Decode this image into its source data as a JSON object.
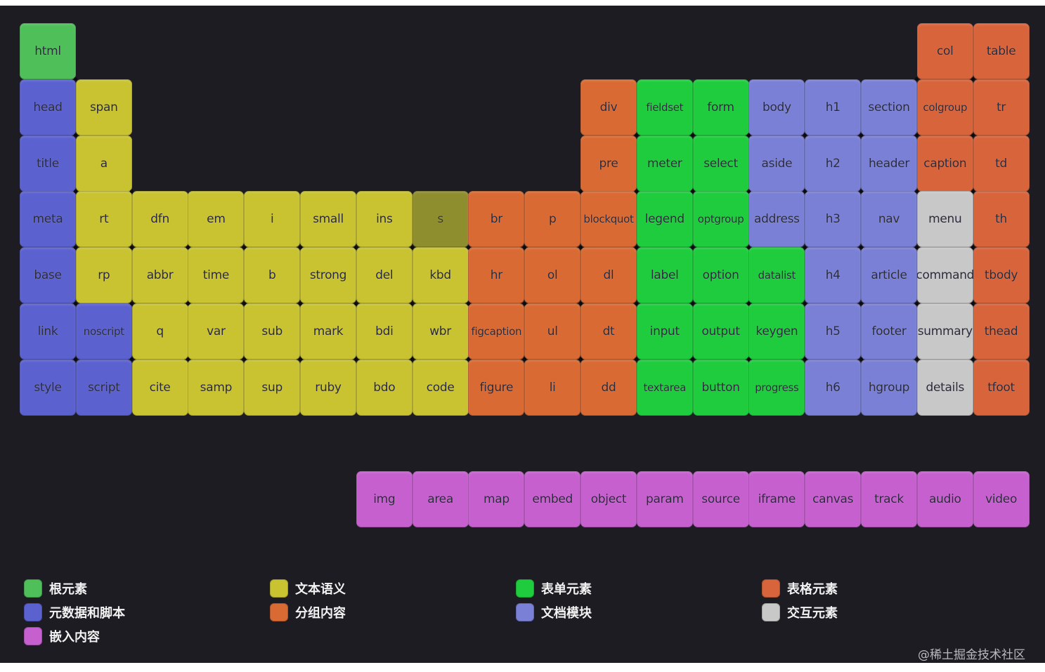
{
  "colors": {
    "root": "#4fbf5a",
    "metadata": "#5b61cf",
    "text": "#c9c332",
    "text_dim": "#8f8e2f",
    "grouping": "#d96a33",
    "forms": "#1fcc3d",
    "sections": "#7a80d6",
    "tables": "#d8643b",
    "interactive": "#c8c8c8",
    "embedded": "#c760cf"
  },
  "elements": [
    {
      "label": "html",
      "category": "root",
      "row": 0,
      "col": 0
    },
    {
      "label": "col",
      "category": "tables",
      "row": 0,
      "col": 16
    },
    {
      "label": "table",
      "category": "tables",
      "row": 0,
      "col": 17
    },
    {
      "label": "head",
      "category": "metadata",
      "row": 1,
      "col": 0
    },
    {
      "label": "span",
      "category": "text",
      "row": 1,
      "col": 1
    },
    {
      "label": "div",
      "category": "grouping",
      "row": 1,
      "col": 10
    },
    {
      "label": "fieldset",
      "category": "forms",
      "row": 1,
      "col": 11
    },
    {
      "label": "form",
      "category": "forms",
      "row": 1,
      "col": 12
    },
    {
      "label": "body",
      "category": "sections",
      "row": 1,
      "col": 13
    },
    {
      "label": "h1",
      "category": "sections",
      "row": 1,
      "col": 14
    },
    {
      "label": "section",
      "category": "sections",
      "row": 1,
      "col": 15
    },
    {
      "label": "colgroup",
      "category": "tables",
      "row": 1,
      "col": 16
    },
    {
      "label": "tr",
      "category": "tables",
      "row": 1,
      "col": 17
    },
    {
      "label": "title",
      "category": "metadata",
      "row": 2,
      "col": 0
    },
    {
      "label": "a",
      "category": "text",
      "row": 2,
      "col": 1
    },
    {
      "label": "pre",
      "category": "grouping",
      "row": 2,
      "col": 10
    },
    {
      "label": "meter",
      "category": "forms",
      "row": 2,
      "col": 11
    },
    {
      "label": "select",
      "category": "forms",
      "row": 2,
      "col": 12
    },
    {
      "label": "aside",
      "category": "sections",
      "row": 2,
      "col": 13
    },
    {
      "label": "h2",
      "category": "sections",
      "row": 2,
      "col": 14
    },
    {
      "label": "header",
      "category": "sections",
      "row": 2,
      "col": 15
    },
    {
      "label": "caption",
      "category": "tables",
      "row": 2,
      "col": 16
    },
    {
      "label": "td",
      "category": "tables",
      "row": 2,
      "col": 17
    },
    {
      "label": "meta",
      "category": "metadata",
      "row": 3,
      "col": 0
    },
    {
      "label": "rt",
      "category": "text",
      "row": 3,
      "col": 1
    },
    {
      "label": "dfn",
      "category": "text",
      "row": 3,
      "col": 2
    },
    {
      "label": "em",
      "category": "text",
      "row": 3,
      "col": 3
    },
    {
      "label": "i",
      "category": "text",
      "row": 3,
      "col": 4
    },
    {
      "label": "small",
      "category": "text",
      "row": 3,
      "col": 5
    },
    {
      "label": "ins",
      "category": "text",
      "row": 3,
      "col": 6
    },
    {
      "label": "s",
      "category": "text_dim",
      "row": 3,
      "col": 7
    },
    {
      "label": "br",
      "category": "grouping",
      "row": 3,
      "col": 8
    },
    {
      "label": "p",
      "category": "grouping",
      "row": 3,
      "col": 9
    },
    {
      "label": "blockquot",
      "category": "grouping",
      "row": 3,
      "col": 10
    },
    {
      "label": "legend",
      "category": "forms",
      "row": 3,
      "col": 11
    },
    {
      "label": "optgroup",
      "category": "forms",
      "row": 3,
      "col": 12
    },
    {
      "label": "address",
      "category": "sections",
      "row": 3,
      "col": 13
    },
    {
      "label": "h3",
      "category": "sections",
      "row": 3,
      "col": 14
    },
    {
      "label": "nav",
      "category": "sections",
      "row": 3,
      "col": 15
    },
    {
      "label": "menu",
      "category": "interactive",
      "row": 3,
      "col": 16
    },
    {
      "label": "th",
      "category": "tables",
      "row": 3,
      "col": 17
    },
    {
      "label": "base",
      "category": "metadata",
      "row": 4,
      "col": 0
    },
    {
      "label": "rp",
      "category": "text",
      "row": 4,
      "col": 1
    },
    {
      "label": "abbr",
      "category": "text",
      "row": 4,
      "col": 2
    },
    {
      "label": "time",
      "category": "text",
      "row": 4,
      "col": 3
    },
    {
      "label": "b",
      "category": "text",
      "row": 4,
      "col": 4
    },
    {
      "label": "strong",
      "category": "text",
      "row": 4,
      "col": 5
    },
    {
      "label": "del",
      "category": "text",
      "row": 4,
      "col": 6
    },
    {
      "label": "kbd",
      "category": "text",
      "row": 4,
      "col": 7
    },
    {
      "label": "hr",
      "category": "grouping",
      "row": 4,
      "col": 8
    },
    {
      "label": "ol",
      "category": "grouping",
      "row": 4,
      "col": 9
    },
    {
      "label": "dl",
      "category": "grouping",
      "row": 4,
      "col": 10
    },
    {
      "label": "label",
      "category": "forms",
      "row": 4,
      "col": 11
    },
    {
      "label": "option",
      "category": "forms",
      "row": 4,
      "col": 12
    },
    {
      "label": "datalist",
      "category": "forms",
      "row": 4,
      "col": 13
    },
    {
      "label": "h4",
      "category": "sections",
      "row": 4,
      "col": 14
    },
    {
      "label": "article",
      "category": "sections",
      "row": 4,
      "col": 15
    },
    {
      "label": "command",
      "category": "interactive",
      "row": 4,
      "col": 16
    },
    {
      "label": "tbody",
      "category": "tables",
      "row": 4,
      "col": 17
    },
    {
      "label": "link",
      "category": "metadata",
      "row": 5,
      "col": 0
    },
    {
      "label": "noscript",
      "category": "metadata",
      "row": 5,
      "col": 1
    },
    {
      "label": "q",
      "category": "text",
      "row": 5,
      "col": 2
    },
    {
      "label": "var",
      "category": "text",
      "row": 5,
      "col": 3
    },
    {
      "label": "sub",
      "category": "text",
      "row": 5,
      "col": 4
    },
    {
      "label": "mark",
      "category": "text",
      "row": 5,
      "col": 5
    },
    {
      "label": "bdi",
      "category": "text",
      "row": 5,
      "col": 6
    },
    {
      "label": "wbr",
      "category": "text",
      "row": 5,
      "col": 7
    },
    {
      "label": "figcaption",
      "category": "grouping",
      "row": 5,
      "col": 8
    },
    {
      "label": "ul",
      "category": "grouping",
      "row": 5,
      "col": 9
    },
    {
      "label": "dt",
      "category": "grouping",
      "row": 5,
      "col": 10
    },
    {
      "label": "input",
      "category": "forms",
      "row": 5,
      "col": 11
    },
    {
      "label": "output",
      "category": "forms",
      "row": 5,
      "col": 12
    },
    {
      "label": "keygen",
      "category": "forms",
      "row": 5,
      "col": 13
    },
    {
      "label": "h5",
      "category": "sections",
      "row": 5,
      "col": 14
    },
    {
      "label": "footer",
      "category": "sections",
      "row": 5,
      "col": 15
    },
    {
      "label": "summary",
      "category": "interactive",
      "row": 5,
      "col": 16
    },
    {
      "label": "thead",
      "category": "tables",
      "row": 5,
      "col": 17
    },
    {
      "label": "style",
      "category": "metadata",
      "row": 6,
      "col": 0
    },
    {
      "label": "script",
      "category": "metadata",
      "row": 6,
      "col": 1
    },
    {
      "label": "cite",
      "category": "text",
      "row": 6,
      "col": 2
    },
    {
      "label": "samp",
      "category": "text",
      "row": 6,
      "col": 3
    },
    {
      "label": "sup",
      "category": "text",
      "row": 6,
      "col": 4
    },
    {
      "label": "ruby",
      "category": "text",
      "row": 6,
      "col": 5
    },
    {
      "label": "bdo",
      "category": "text",
      "row": 6,
      "col": 6
    },
    {
      "label": "code",
      "category": "text",
      "row": 6,
      "col": 7
    },
    {
      "label": "figure",
      "category": "grouping",
      "row": 6,
      "col": 8
    },
    {
      "label": "li",
      "category": "grouping",
      "row": 6,
      "col": 9
    },
    {
      "label": "dd",
      "category": "grouping",
      "row": 6,
      "col": 10
    },
    {
      "label": "textarea",
      "category": "forms",
      "row": 6,
      "col": 11
    },
    {
      "label": "button",
      "category": "forms",
      "row": 6,
      "col": 12
    },
    {
      "label": "progress",
      "category": "forms",
      "row": 6,
      "col": 13
    },
    {
      "label": "h6",
      "category": "sections",
      "row": 6,
      "col": 14
    },
    {
      "label": "hgroup",
      "category": "sections",
      "row": 6,
      "col": 15
    },
    {
      "label": "details",
      "category": "interactive",
      "row": 6,
      "col": 16
    },
    {
      "label": "tfoot",
      "category": "tables",
      "row": 6,
      "col": 17
    },
    {
      "label": "img",
      "category": "embedded",
      "row": 8,
      "col": 6
    },
    {
      "label": "area",
      "category": "embedded",
      "row": 8,
      "col": 7
    },
    {
      "label": "map",
      "category": "embedded",
      "row": 8,
      "col": 8
    },
    {
      "label": "embed",
      "category": "embedded",
      "row": 8,
      "col": 9
    },
    {
      "label": "object",
      "category": "embedded",
      "row": 8,
      "col": 10
    },
    {
      "label": "param",
      "category": "embedded",
      "row": 8,
      "col": 11
    },
    {
      "label": "source",
      "category": "embedded",
      "row": 8,
      "col": 12
    },
    {
      "label": "iframe",
      "category": "embedded",
      "row": 8,
      "col": 13
    },
    {
      "label": "canvas",
      "category": "embedded",
      "row": 8,
      "col": 14
    },
    {
      "label": "track",
      "category": "embedded",
      "row": 8,
      "col": 15
    },
    {
      "label": "audio",
      "category": "embedded",
      "row": 8,
      "col": 16
    },
    {
      "label": "video",
      "category": "embedded",
      "row": 8,
      "col": 17
    }
  ],
  "legend": [
    {
      "label": "根元素",
      "category": "root"
    },
    {
      "label": "文本语义",
      "category": "text"
    },
    {
      "label": "表单元素",
      "category": "forms"
    },
    {
      "label": "表格元素",
      "category": "tables"
    },
    {
      "label": "元数据和脚本",
      "category": "metadata"
    },
    {
      "label": "分组内容",
      "category": "grouping"
    },
    {
      "label": "文档模块",
      "category": "sections"
    },
    {
      "label": "交互元素",
      "category": "interactive"
    },
    {
      "label": "嵌入内容",
      "category": "embedded"
    }
  ],
  "watermark": "@稀土掘金技术社区"
}
